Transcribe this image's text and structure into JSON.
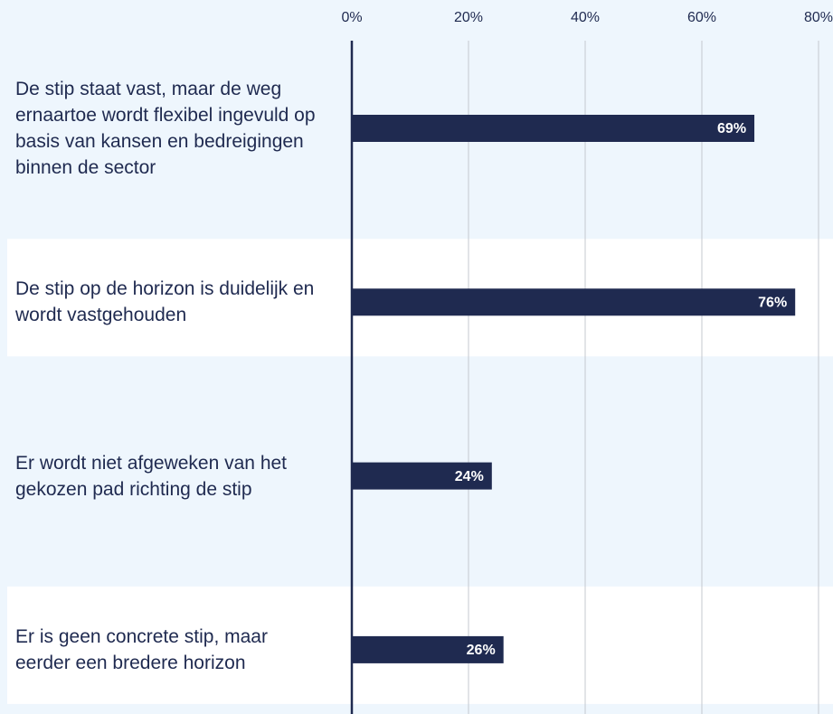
{
  "chart_data": {
    "type": "bar",
    "orientation": "horizontal",
    "categories": [
      "De stip staat vast, maar de weg ernaartoe wordt flexibel ingevuld op basis van kansen en bedreigingen binnen de sector",
      "De stip op de horizon is duidelijk en wordt vastgehouden",
      "Er wordt niet afgeweken van het gekozen pad richting de stip",
      "Er is geen concrete stip, maar eerder een bredere horizon"
    ],
    "values": [
      69,
      76,
      24,
      26
    ],
    "value_labels": [
      "69%",
      "76%",
      "24%",
      "26%"
    ],
    "color": "#1f2a50",
    "xlim": [
      0,
      80
    ],
    "xticks": [
      {
        "value": 0,
        "label": "0%"
      },
      {
        "value": 20,
        "label": "20%"
      },
      {
        "value": 40,
        "label": "40%"
      },
      {
        "value": 60,
        "label": "60%"
      },
      {
        "value": 80,
        "label": "80%"
      }
    ],
    "grid": true
  }
}
